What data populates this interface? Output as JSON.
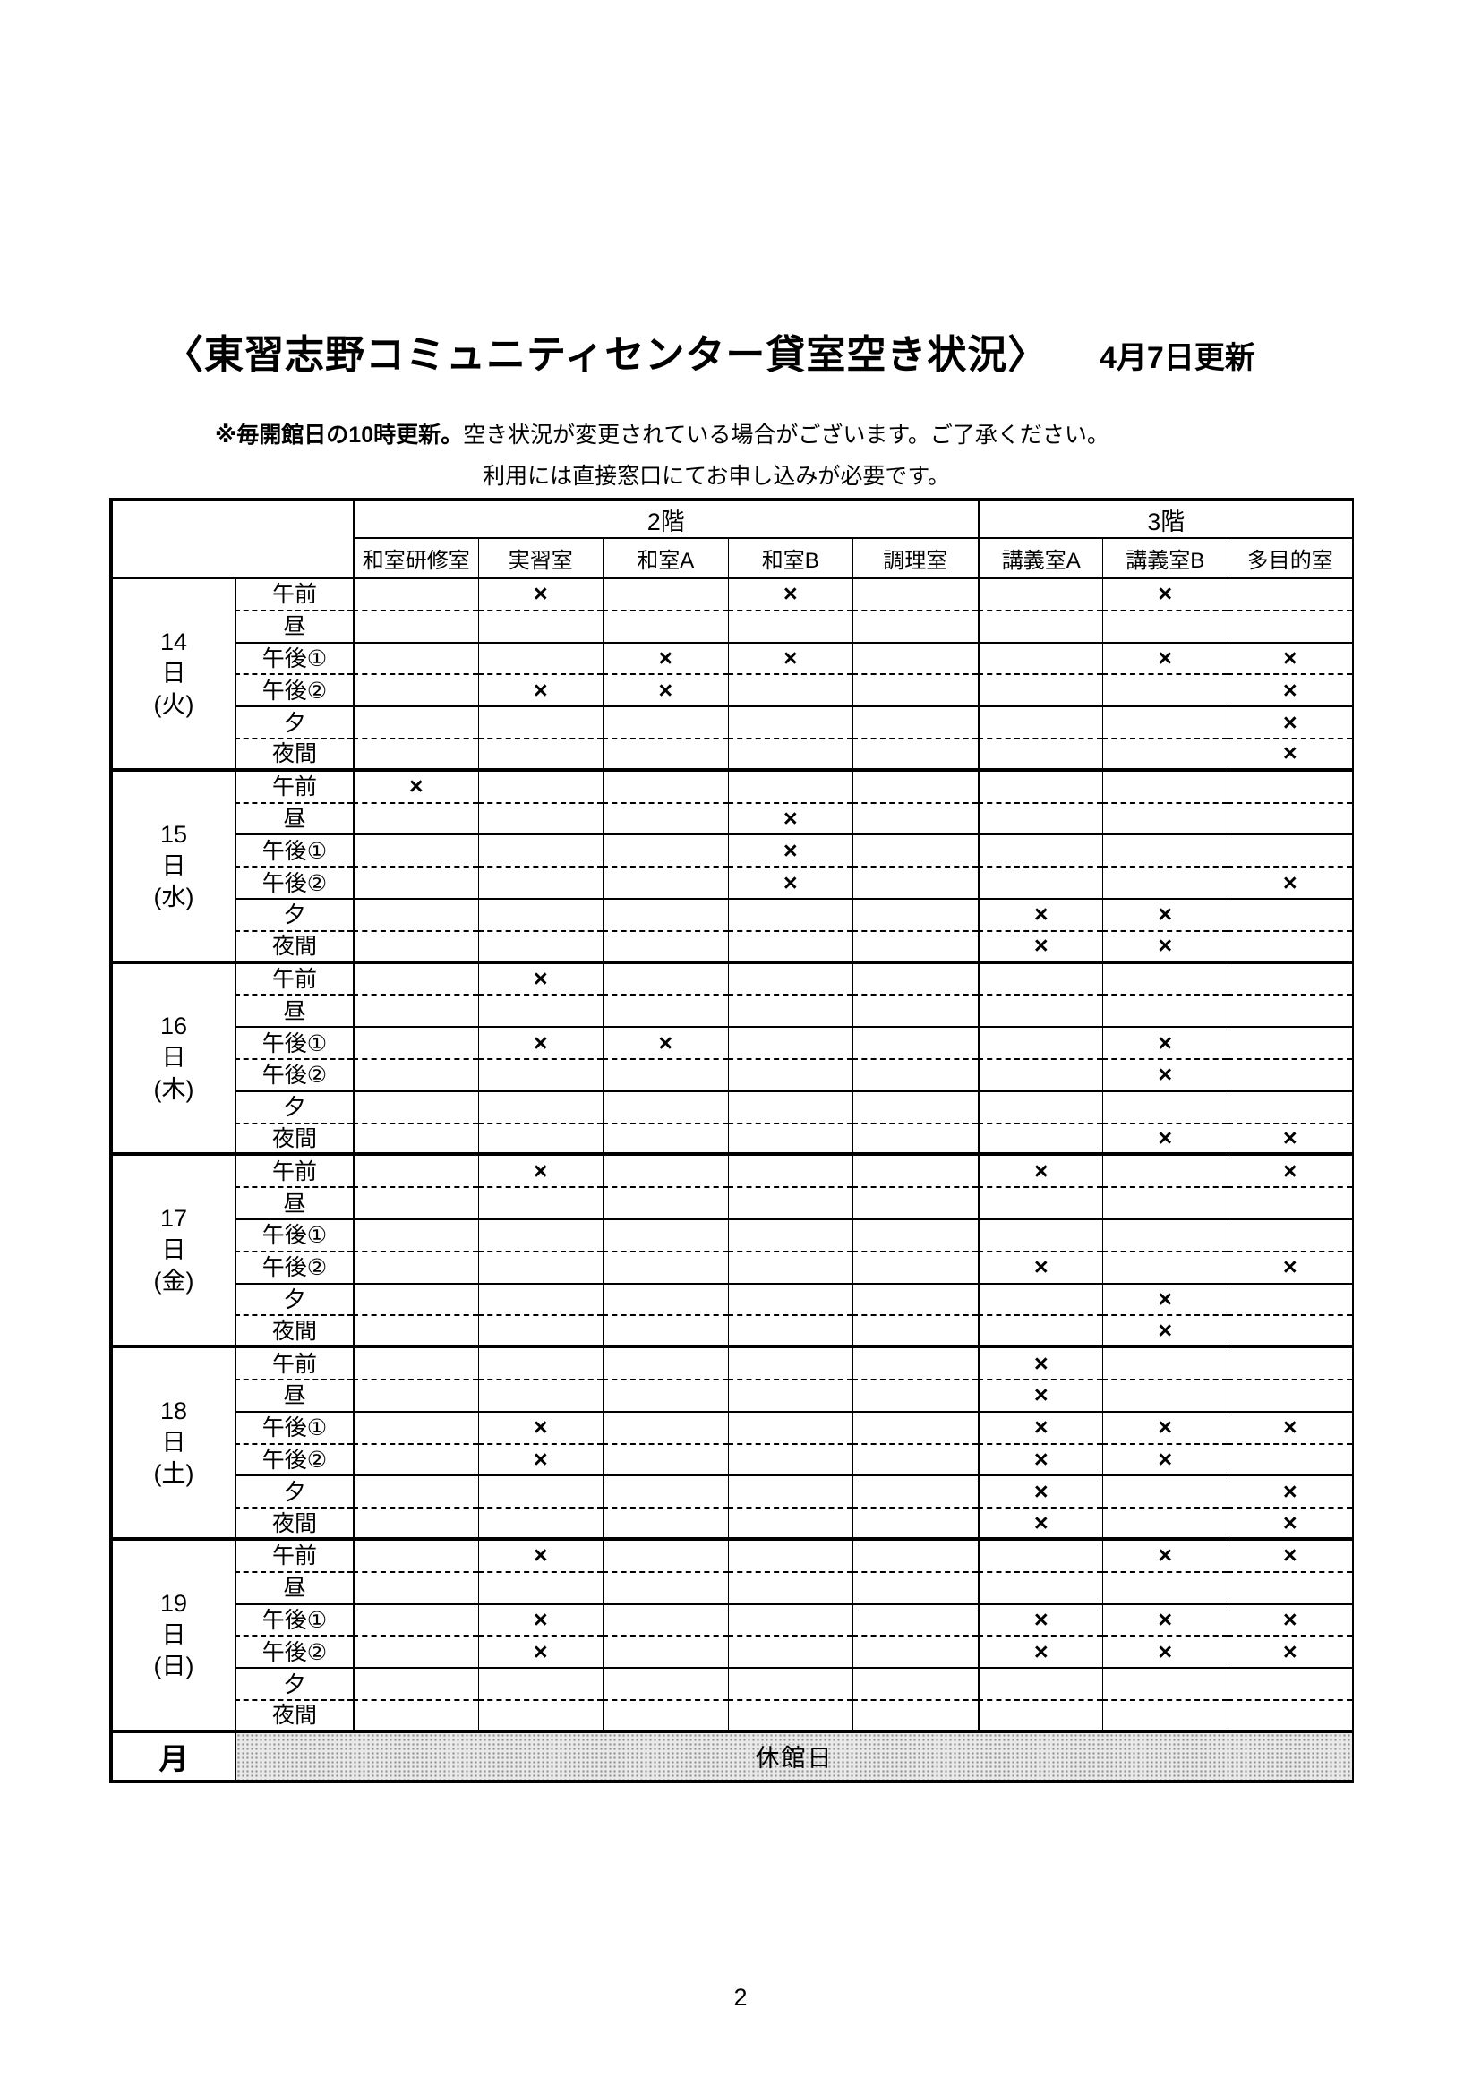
{
  "page": {
    "title": "〈東習志野コミュニティセンター貸室空き状況〉",
    "updated_label": "4月7日更新",
    "note1_bold": "※毎開館日の10時更新。",
    "note1_rest": "空き状況が変更されている場合がございます。ご了承ください。",
    "note2": "利用には直接窓口にてお申し込みが必要です。",
    "page_number": "2"
  },
  "table": {
    "floors": [
      {
        "label": "2階",
        "span": 5
      },
      {
        "label": "3階",
        "span": 3
      }
    ],
    "rooms": [
      "和室研修室",
      "実習室",
      "和室A",
      "和室B",
      "調理室",
      "講義室A",
      "講義室B",
      "多目的室"
    ],
    "time_slots": [
      "午前",
      "昼",
      "午後①",
      "午後②",
      "夕",
      "夜間"
    ],
    "unavailable_mark": "×",
    "days": [
      {
        "date": "14",
        "date_suffix": "日",
        "weekday": "(火)",
        "marks": [
          [
            0,
            1,
            0,
            1,
            0,
            0,
            1,
            0
          ],
          [
            0,
            0,
            0,
            0,
            0,
            0,
            0,
            0
          ],
          [
            0,
            0,
            1,
            1,
            0,
            0,
            1,
            1
          ],
          [
            0,
            1,
            1,
            0,
            0,
            0,
            0,
            1
          ],
          [
            0,
            0,
            0,
            0,
            0,
            0,
            0,
            1
          ],
          [
            0,
            0,
            0,
            0,
            0,
            0,
            0,
            1
          ]
        ]
      },
      {
        "date": "15",
        "date_suffix": "日",
        "weekday": "(水)",
        "marks": [
          [
            1,
            0,
            0,
            0,
            0,
            0,
            0,
            0
          ],
          [
            0,
            0,
            0,
            1,
            0,
            0,
            0,
            0
          ],
          [
            0,
            0,
            0,
            1,
            0,
            0,
            0,
            0
          ],
          [
            0,
            0,
            0,
            1,
            0,
            0,
            0,
            1
          ],
          [
            0,
            0,
            0,
            0,
            0,
            1,
            1,
            0
          ],
          [
            0,
            0,
            0,
            0,
            0,
            1,
            1,
            0
          ]
        ]
      },
      {
        "date": "16",
        "date_suffix": "日",
        "weekday": "(木)",
        "marks": [
          [
            0,
            1,
            0,
            0,
            0,
            0,
            0,
            0
          ],
          [
            0,
            0,
            0,
            0,
            0,
            0,
            0,
            0
          ],
          [
            0,
            1,
            1,
            0,
            0,
            0,
            1,
            0
          ],
          [
            0,
            0,
            0,
            0,
            0,
            0,
            1,
            0
          ],
          [
            0,
            0,
            0,
            0,
            0,
            0,
            0,
            0
          ],
          [
            0,
            0,
            0,
            0,
            0,
            0,
            1,
            1
          ]
        ]
      },
      {
        "date": "17",
        "date_suffix": "日",
        "weekday": "(金)",
        "marks": [
          [
            0,
            1,
            0,
            0,
            0,
            1,
            0,
            1
          ],
          [
            0,
            0,
            0,
            0,
            0,
            0,
            0,
            0
          ],
          [
            0,
            0,
            0,
            0,
            0,
            0,
            0,
            0
          ],
          [
            0,
            0,
            0,
            0,
            0,
            1,
            0,
            1
          ],
          [
            0,
            0,
            0,
            0,
            0,
            0,
            1,
            0
          ],
          [
            0,
            0,
            0,
            0,
            0,
            0,
            1,
            0
          ]
        ]
      },
      {
        "date": "18",
        "date_suffix": "日",
        "weekday": "(土)",
        "marks": [
          [
            0,
            0,
            0,
            0,
            0,
            1,
            0,
            0
          ],
          [
            0,
            0,
            0,
            0,
            0,
            1,
            0,
            0
          ],
          [
            0,
            1,
            0,
            0,
            0,
            1,
            1,
            1
          ],
          [
            0,
            1,
            0,
            0,
            0,
            1,
            1,
            0
          ],
          [
            0,
            0,
            0,
            0,
            0,
            1,
            0,
            1
          ],
          [
            0,
            0,
            0,
            0,
            0,
            1,
            0,
            1
          ]
        ]
      },
      {
        "date": "19",
        "date_suffix": "日",
        "weekday": "(日)",
        "marks": [
          [
            0,
            1,
            0,
            0,
            0,
            0,
            1,
            1
          ],
          [
            0,
            0,
            0,
            0,
            0,
            0,
            0,
            0
          ],
          [
            0,
            1,
            0,
            0,
            0,
            1,
            1,
            1
          ],
          [
            0,
            1,
            0,
            0,
            0,
            1,
            1,
            1
          ],
          [
            0,
            0,
            0,
            0,
            0,
            0,
            0,
            0
          ],
          [
            0,
            0,
            0,
            0,
            0,
            0,
            0,
            0
          ]
        ]
      }
    ],
    "closed_row": {
      "day_label": "月",
      "label": "休館日"
    }
  }
}
